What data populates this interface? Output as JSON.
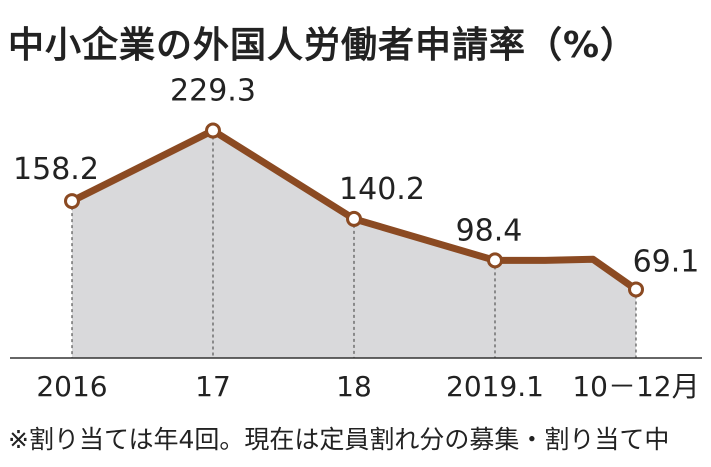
{
  "title": "中小企業の外国人労働者申請率（%）",
  "footnote": "※割り当ては年4回。現在は定員割れ分の募集・割り当て中",
  "colors": {
    "line": "#8B4A22",
    "area": "#D9D9DB",
    "marker_fill": "#FFFFFF",
    "axis": "#333333",
    "dashed": "#555555"
  },
  "chart_data": {
    "type": "area",
    "title": "中小企業の外国人労働者申請率（%）",
    "unit": "%",
    "xlabel": "",
    "ylabel": "",
    "ylim": [
      0,
      250
    ],
    "grid": false,
    "legend": "none",
    "x_tick_labels": [
      "2016",
      "17",
      "18",
      "2019.1",
      "10－12月"
    ],
    "points": [
      {
        "x": "2016",
        "y": 158.2,
        "label": "158.2",
        "marker": true
      },
      {
        "x": "17",
        "y": 229.3,
        "label": "229.3",
        "marker": true
      },
      {
        "x": "18",
        "y": 140.2,
        "label": "140.2",
        "marker": true
      },
      {
        "x": "2019.1",
        "y": 98.4,
        "label": "98.4",
        "marker": true
      },
      {
        "x": "2019.3",
        "y": 98.4,
        "label": "",
        "marker": false
      },
      {
        "x": "2019.7",
        "y": 99.5,
        "label": "",
        "marker": false
      },
      {
        "x": "10－12月",
        "y": 69.1,
        "label": "69.1",
        "marker": true
      }
    ]
  }
}
